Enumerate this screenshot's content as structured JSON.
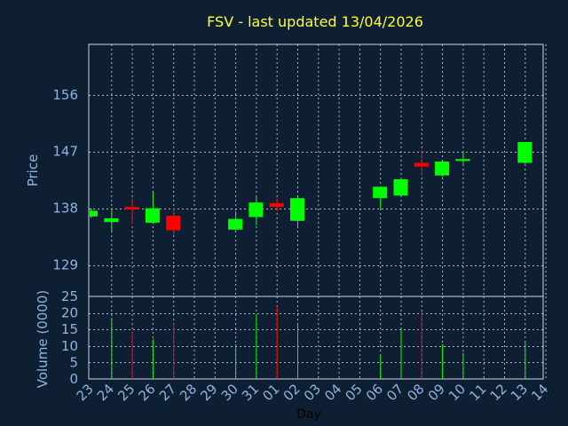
{
  "chart_data": {
    "type": "candlestick",
    "title": "FSV - last updated 13/04/2026",
    "xlabel": "Day",
    "x_ticks": [
      "23",
      "24",
      "25",
      "26",
      "27",
      "28",
      "29",
      "30",
      "31",
      "01",
      "02",
      "03",
      "04",
      "05",
      "06",
      "07",
      "08",
      "09",
      "10",
      "11",
      "12",
      "13",
      "14"
    ],
    "price": {
      "ylabel": "Price",
      "ylim": [
        124,
        164
      ],
      "yticks": [
        129,
        138,
        147,
        156
      ],
      "grid": true
    },
    "volume": {
      "ylabel": "Volume (0000)",
      "ylim": [
        0,
        25
      ],
      "yticks": [
        0,
        5,
        10,
        15,
        20,
        25
      ],
      "grid": true
    },
    "colors": {
      "up": "#00ff00",
      "down": "#ff0000"
    },
    "candles": [
      {
        "day": "23",
        "open": 136.7,
        "high": 138.0,
        "low": 136.5,
        "close": 137.6,
        "volume": 0
      },
      {
        "day": "24",
        "open": 135.8,
        "high": 138.0,
        "low": 134.2,
        "close": 136.4,
        "volume": 18.5
      },
      {
        "day": "25",
        "open": 138.2,
        "high": 139.5,
        "low": 135.5,
        "close": 137.8,
        "volume": 14.5
      },
      {
        "day": "26",
        "open": 135.7,
        "high": 140.5,
        "low": 135.5,
        "close": 138.0,
        "volume": 12.0
      },
      {
        "day": "27",
        "open": 136.8,
        "high": 138.0,
        "low": 133.8,
        "close": 134.5,
        "volume": 17.0
      },
      {
        "day": "30",
        "open": 134.6,
        "high": 137.5,
        "low": 134.5,
        "close": 136.3,
        "volume": 10.5
      },
      {
        "day": "31",
        "open": 136.6,
        "high": 139.8,
        "low": 135.3,
        "close": 138.9,
        "volume": 19.5
      },
      {
        "day": "01",
        "open": 138.8,
        "high": 139.5,
        "low": 137.5,
        "close": 138.2,
        "volume": 22.0
      },
      {
        "day": "02",
        "open": 136.0,
        "high": 139.8,
        "low": 135.0,
        "close": 139.6,
        "volume": 17.0
      },
      {
        "day": "06",
        "open": 139.6,
        "high": 141.5,
        "low": 137.8,
        "close": 141.4,
        "volume": 7.0
      },
      {
        "day": "07",
        "open": 140.0,
        "high": 142.7,
        "low": 140.0,
        "close": 142.6,
        "volume": 15.0
      },
      {
        "day": "08",
        "open": 145.2,
        "high": 147.2,
        "low": 143.2,
        "close": 144.6,
        "volume": 20.5
      },
      {
        "day": "09",
        "open": 143.2,
        "high": 145.5,
        "low": 143.0,
        "close": 145.4,
        "volume": 10.5
      },
      {
        "day": "10",
        "open": 145.5,
        "high": 147.0,
        "low": 145.0,
        "close": 145.8,
        "volume": 8.0
      },
      {
        "day": "13",
        "open": 145.2,
        "high": 148.5,
        "low": 145.0,
        "close": 148.5,
        "volume": 11.0
      }
    ]
  }
}
